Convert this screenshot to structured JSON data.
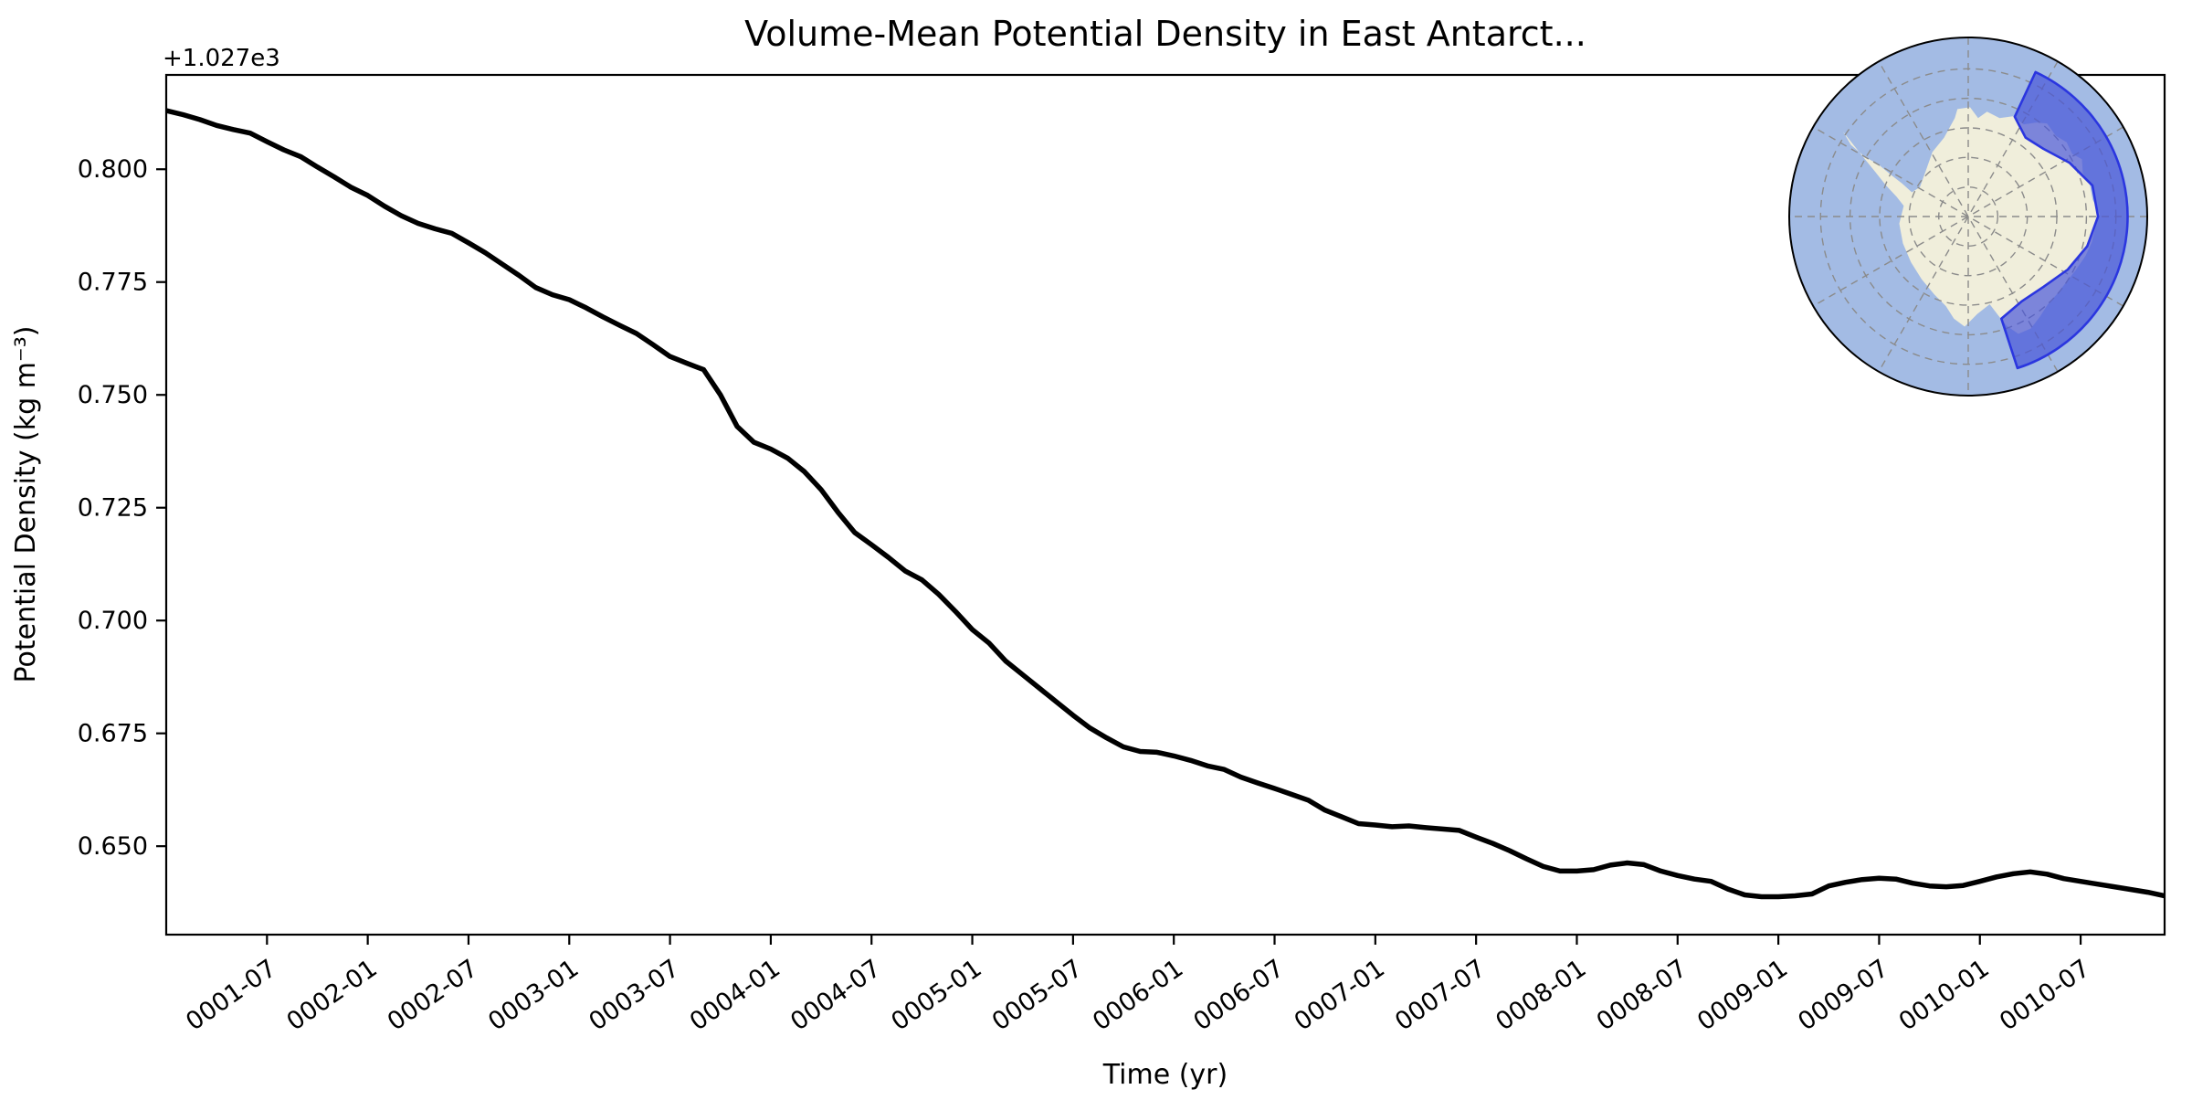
{
  "chart_data": {
    "type": "line",
    "title": "Volume-Mean Potential Density in East Antarct...",
    "xlabel": "Time (yr)",
    "ylabel": "Potential Density (kg m⁻³)",
    "y_offset_text": "+1.027e3",
    "line_color": "#000000",
    "x_start": "0001-01",
    "x_step_months": 1,
    "x_tick_labels": [
      "0001-07",
      "0002-01",
      "0002-07",
      "0003-01",
      "0003-07",
      "0004-01",
      "0004-07",
      "0005-01",
      "0005-07",
      "0006-01",
      "0006-07",
      "0007-01",
      "0007-07",
      "0008-01",
      "0008-07",
      "0009-01",
      "0009-07",
      "0010-01",
      "0010-07"
    ],
    "x_tick_months": [
      6,
      12,
      18,
      24,
      30,
      36,
      42,
      48,
      54,
      60,
      66,
      72,
      78,
      84,
      90,
      96,
      102,
      108,
      114
    ],
    "xlim_months": [
      0,
      119
    ],
    "y_tick_labels": [
      "0.650",
      "0.675",
      "0.700",
      "0.725",
      "0.750",
      "0.775",
      "0.800"
    ],
    "y_tick_values": [
      1027.65,
      1027.675,
      1027.7,
      1027.725,
      1027.75,
      1027.775,
      1027.8
    ],
    "ylim": [
      1027.6304,
      1027.8209
    ],
    "grid": false,
    "legend": null,
    "series": [
      {
        "name": "volume-mean potential density",
        "values": [
          1027.813,
          1027.8121,
          1027.811,
          1027.8097,
          1027.8088,
          1027.808,
          1027.8061,
          1027.8043,
          1027.8028,
          1027.8005,
          1027.7983,
          1027.796,
          1027.7942,
          1027.7918,
          1027.7897,
          1027.788,
          1027.7868,
          1027.7858,
          1027.7837,
          1027.7815,
          1027.779,
          1027.7765,
          1027.7738,
          1027.7722,
          1027.7711,
          1027.7693,
          1027.7673,
          1027.7654,
          1027.7636,
          1027.7611,
          1027.7585,
          1027.757,
          1027.7556,
          1027.75,
          1027.743,
          1027.7395,
          1027.738,
          1027.736,
          1027.733,
          1027.729,
          1027.724,
          1027.7195,
          1027.7168,
          1027.714,
          1027.711,
          1027.709,
          1027.7058,
          1027.702,
          1027.698,
          1027.695,
          1027.691,
          1027.688,
          1027.685,
          1027.682,
          1027.679,
          1027.6762,
          1027.674,
          1027.672,
          1027.671,
          1027.6708,
          1027.67,
          1027.669,
          1027.6678,
          1027.667,
          1027.6653,
          1027.664,
          1027.6628,
          1027.6615,
          1027.6602,
          1027.658,
          1027.6565,
          1027.655,
          1027.6547,
          1027.6543,
          1027.6545,
          1027.6541,
          1027.6538,
          1027.6535,
          1027.652,
          1027.6506,
          1027.649,
          1027.6472,
          1027.6455,
          1027.6445,
          1027.6445,
          1027.6448,
          1027.6458,
          1027.6463,
          1027.6459,
          1027.6445,
          1027.6435,
          1027.6427,
          1027.6422,
          1027.6405,
          1027.6392,
          1027.6388,
          1027.6388,
          1027.639,
          1027.6394,
          1027.6412,
          1027.642,
          1027.6426,
          1027.6429,
          1027.6427,
          1027.6418,
          1027.6412,
          1027.641,
          1027.6413,
          1027.6422,
          1027.6432,
          1027.6439,
          1027.6443,
          1027.6438,
          1027.6428,
          1027.6422,
          1027.6416,
          1027.641,
          1027.6404,
          1027.6398,
          1027.639
        ]
      }
    ],
    "inset_map": {
      "description": "South polar stereographic map of Antarctica with highlighted East Antarctic coastal sector",
      "ocean_color": "#a3bbe4",
      "land_color": "#f0eedb",
      "region_fill": "#4652d8",
      "region_fill_opacity": 0.68,
      "region_edge_color": "#2b36df",
      "graticule_color": "#8b8b8b",
      "outline_color": "#000000"
    }
  }
}
